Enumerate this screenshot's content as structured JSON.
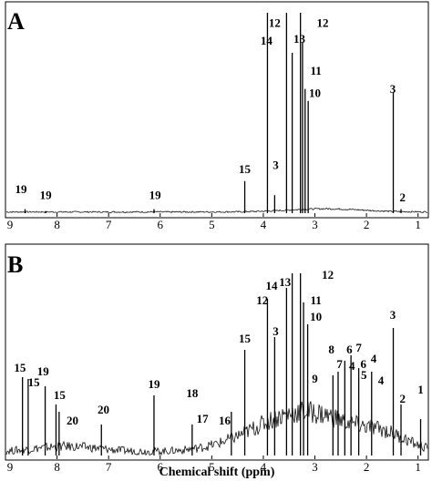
{
  "chart_data": [
    {
      "type": "line",
      "panel_label": "A",
      "xlim": [
        9,
        0.8
      ],
      "ylim": [
        0,
        100
      ],
      "xticks": [
        9,
        8,
        7,
        6,
        5,
        4,
        3,
        2,
        1
      ],
      "xticklabels": [
        "9",
        "8",
        "7",
        "6",
        "5",
        "4",
        "3",
        "2",
        "1"
      ],
      "xlabel": "",
      "peaks": [
        {
          "shift": 8.62,
          "intensity": 2
        },
        {
          "shift": 8.22,
          "intensity": 1
        },
        {
          "shift": 6.12,
          "intensity": 2
        },
        {
          "shift": 4.36,
          "intensity": 16
        },
        {
          "shift": 3.92,
          "intensity": 100
        },
        {
          "shift": 3.78,
          "intensity": 9
        },
        {
          "shift": 3.55,
          "intensity": 100
        },
        {
          "shift": 3.44,
          "intensity": 80
        },
        {
          "shift": 3.28,
          "intensity": 100
        },
        {
          "shift": 3.24,
          "intensity": 85
        },
        {
          "shift": 3.19,
          "intensity": 62
        },
        {
          "shift": 3.13,
          "intensity": 56
        },
        {
          "shift": 1.48,
          "intensity": 60
        },
        {
          "shift": 1.33,
          "intensity": 2
        }
      ],
      "annotations": [
        {
          "text": "12",
          "shift": 3.78,
          "level": 93
        },
        {
          "text": "12",
          "shift": 2.85,
          "level": 93
        },
        {
          "text": "14",
          "shift": 3.94,
          "level": 84
        },
        {
          "text": "13",
          "shift": 3.3,
          "level": 85
        },
        {
          "text": "11",
          "shift": 2.98,
          "level": 69
        },
        {
          "text": "10",
          "shift": 3.0,
          "level": 58
        },
        {
          "text": "3",
          "shift": 1.49,
          "level": 60
        },
        {
          "text": "15",
          "shift": 4.36,
          "level": 20
        },
        {
          "text": "3",
          "shift": 3.76,
          "level": 22
        },
        {
          "text": "19",
          "shift": 8.7,
          "level": 10
        },
        {
          "text": "19",
          "shift": 8.22,
          "level": 7
        },
        {
          "text": "19",
          "shift": 6.1,
          "level": 7
        },
        {
          "text": "2",
          "shift": 1.3,
          "level": 6
        }
      ]
    },
    {
      "type": "line",
      "panel_label": "B",
      "xlim": [
        9,
        0.8
      ],
      "ylim": [
        0,
        100
      ],
      "xticks": [
        9,
        8,
        7,
        6,
        5,
        4,
        3,
        2,
        1
      ],
      "xticklabels": [
        "9",
        "8",
        "7",
        "6",
        "5",
        "4",
        "3",
        "2",
        "1"
      ],
      "xlabel": "Chemical shift (ppm)",
      "peaks": [
        {
          "shift": 8.67,
          "intensity": 43
        },
        {
          "shift": 8.56,
          "intensity": 42
        },
        {
          "shift": 8.23,
          "intensity": 38
        },
        {
          "shift": 8.02,
          "intensity": 28
        },
        {
          "shift": 7.96,
          "intensity": 24
        },
        {
          "shift": 7.14,
          "intensity": 17
        },
        {
          "shift": 6.12,
          "intensity": 33
        },
        {
          "shift": 5.38,
          "intensity": 17
        },
        {
          "shift": 4.62,
          "intensity": 24
        },
        {
          "shift": 4.36,
          "intensity": 58
        },
        {
          "shift": 3.92,
          "intensity": 86
        },
        {
          "shift": 3.78,
          "intensity": 65
        },
        {
          "shift": 3.55,
          "intensity": 92
        },
        {
          "shift": 3.44,
          "intensity": 100
        },
        {
          "shift": 3.28,
          "intensity": 100
        },
        {
          "shift": 3.22,
          "intensity": 84
        },
        {
          "shift": 3.14,
          "intensity": 72
        },
        {
          "shift": 2.65,
          "intensity": 44
        },
        {
          "shift": 2.55,
          "intensity": 46
        },
        {
          "shift": 2.42,
          "intensity": 52
        },
        {
          "shift": 2.3,
          "intensity": 55
        },
        {
          "shift": 2.15,
          "intensity": 48
        },
        {
          "shift": 1.9,
          "intensity": 46
        },
        {
          "shift": 1.48,
          "intensity": 70
        },
        {
          "shift": 1.33,
          "intensity": 28
        },
        {
          "shift": 0.95,
          "intensity": 20
        }
      ],
      "annotations": [
        {
          "text": "12",
          "shift": 2.75,
          "level": 97
        },
        {
          "text": "13",
          "shift": 3.58,
          "level": 93
        },
        {
          "text": "14",
          "shift": 3.84,
          "level": 91
        },
        {
          "text": "12",
          "shift": 4.02,
          "level": 83
        },
        {
          "text": "11",
          "shift": 2.98,
          "level": 83
        },
        {
          "text": "10",
          "shift": 2.98,
          "level": 74
        },
        {
          "text": "3",
          "shift": 1.49,
          "level": 75
        },
        {
          "text": "3",
          "shift": 3.76,
          "level": 66
        },
        {
          "text": "15",
          "shift": 4.36,
          "level": 62
        },
        {
          "text": "8",
          "shift": 2.68,
          "level": 56
        },
        {
          "text": "6",
          "shift": 2.33,
          "level": 56
        },
        {
          "text": "7",
          "shift": 2.15,
          "level": 57
        },
        {
          "text": "7",
          "shift": 2.52,
          "level": 48
        },
        {
          "text": "4",
          "shift": 2.28,
          "level": 47
        },
        {
          "text": "6",
          "shift": 2.06,
          "level": 48
        },
        {
          "text": "4",
          "shift": 1.86,
          "level": 51
        },
        {
          "text": "5",
          "shift": 2.05,
          "level": 42
        },
        {
          "text": "4",
          "shift": 1.72,
          "level": 39
        },
        {
          "text": "9",
          "shift": 3.0,
          "level": 40
        },
        {
          "text": "2",
          "shift": 1.3,
          "level": 29
        },
        {
          "text": "1",
          "shift": 0.95,
          "level": 34
        },
        {
          "text": "15",
          "shift": 8.72,
          "level": 46
        },
        {
          "text": "19",
          "shift": 8.27,
          "level": 44
        },
        {
          "text": "15",
          "shift": 8.45,
          "level": 38
        },
        {
          "text": "15",
          "shift": 7.95,
          "level": 31
        },
        {
          "text": "20",
          "shift": 7.1,
          "level": 23
        },
        {
          "text": "20",
          "shift": 7.7,
          "level": 17
        },
        {
          "text": "19",
          "shift": 6.12,
          "level": 37
        },
        {
          "text": "18",
          "shift": 5.38,
          "level": 32
        },
        {
          "text": "17",
          "shift": 5.18,
          "level": 18
        },
        {
          "text": "16",
          "shift": 4.75,
          "level": 17
        }
      ]
    }
  ]
}
